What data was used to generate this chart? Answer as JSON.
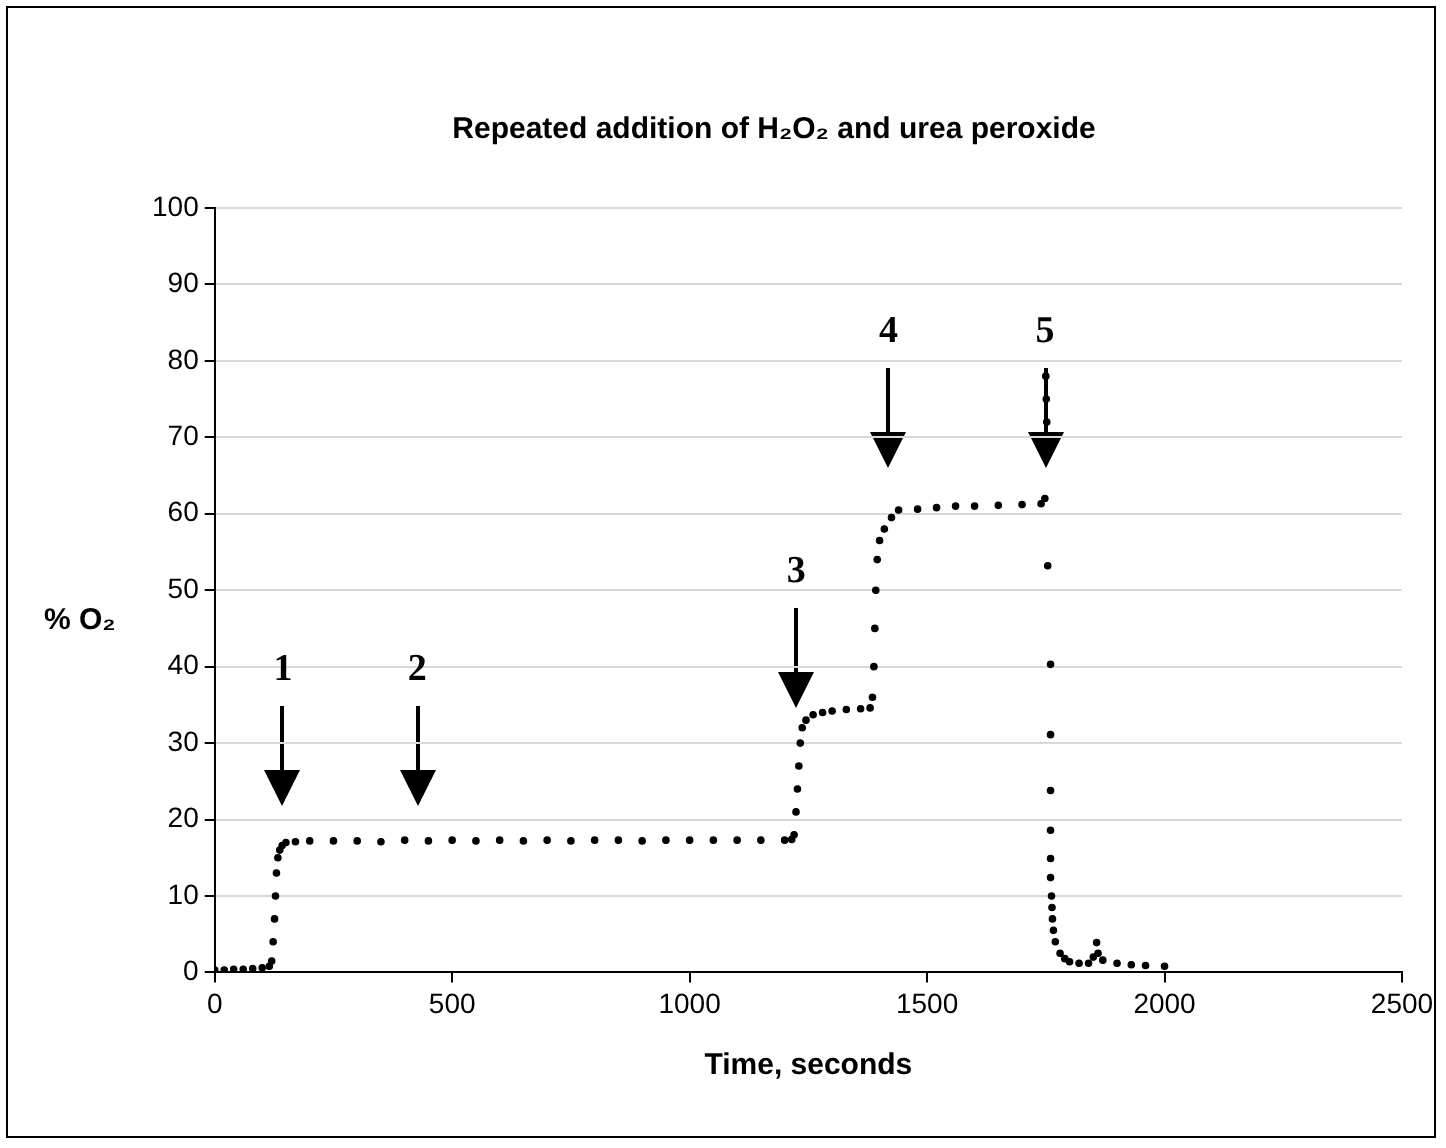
{
  "chart_data": {
    "type": "scatter",
    "title": "Repeated addition of H₂O₂ and urea peroxide",
    "xlabel": "Time, seconds",
    "ylabel": "% O₂",
    "x": [
      0,
      20,
      40,
      60,
      80,
      100,
      115,
      120,
      123,
      126,
      128,
      130,
      133,
      137,
      142,
      150,
      170,
      200,
      250,
      300,
      350,
      400,
      450,
      500,
      550,
      600,
      650,
      700,
      750,
      800,
      850,
      900,
      950,
      1000,
      1050,
      1100,
      1150,
      1200,
      1215,
      1220,
      1224,
      1227,
      1230,
      1233,
      1237,
      1245,
      1260,
      1280,
      1300,
      1330,
      1360,
      1380,
      1385,
      1388,
      1390,
      1392,
      1395,
      1400,
      1410,
      1425,
      1440,
      1480,
      1520,
      1560,
      1600,
      1650,
      1700,
      1740,
      1748,
      1750,
      1751,
      1752,
      1754,
      1760,
      1760,
      1760,
      1760,
      1760,
      1760,
      1762,
      1763,
      1764,
      1766,
      1770,
      1780,
      1790,
      1800,
      1820,
      1840,
      1850,
      1857,
      1860,
      1870,
      1900,
      1930,
      1960,
      2000
    ],
    "values": [
      0.3,
      0.3,
      0.4,
      0.4,
      0.5,
      0.6,
      0.8,
      1.5,
      4,
      7,
      10,
      13,
      15,
      16,
      16.6,
      17,
      17.1,
      17.2,
      17.2,
      17.2,
      17.1,
      17.3,
      17.2,
      17.3,
      17.2,
      17.3,
      17.2,
      17.3,
      17.2,
      17.3,
      17.3,
      17.2,
      17.3,
      17.3,
      17.3,
      17.3,
      17.3,
      17.3,
      17.4,
      18,
      21,
      24,
      27,
      30,
      32,
      33,
      33.7,
      34,
      34.2,
      34.4,
      34.5,
      34.6,
      36,
      40,
      45,
      50,
      54,
      56.5,
      58,
      59.5,
      60.5,
      60.6,
      60.8,
      61,
      61,
      61.1,
      61.2,
      61.3,
      62,
      78,
      75,
      72,
      53.2,
      40.3,
      31.1,
      23.8,
      18.6,
      14.9,
      12.4,
      10,
      8.5,
      7,
      5.5,
      4,
      2.5,
      1.8,
      1.4,
      1.2,
      1.2,
      2,
      3.9,
      2.5,
      1.6,
      1.2,
      1,
      0.9,
      0.8
    ],
    "color": "#000000",
    "marker": "circle",
    "grid": "y",
    "legend": false,
    "xlim": [
      0,
      2500
    ],
    "xticks": [
      0,
      500,
      1000,
      1500,
      2000,
      2500
    ],
    "ylim": [
      0,
      100
    ],
    "yticks": [
      0,
      10,
      20,
      30,
      40,
      50,
      60,
      70,
      80,
      90,
      100
    ],
    "annotations": [
      "1",
      "2",
      "3",
      "4",
      "5"
    ]
  }
}
